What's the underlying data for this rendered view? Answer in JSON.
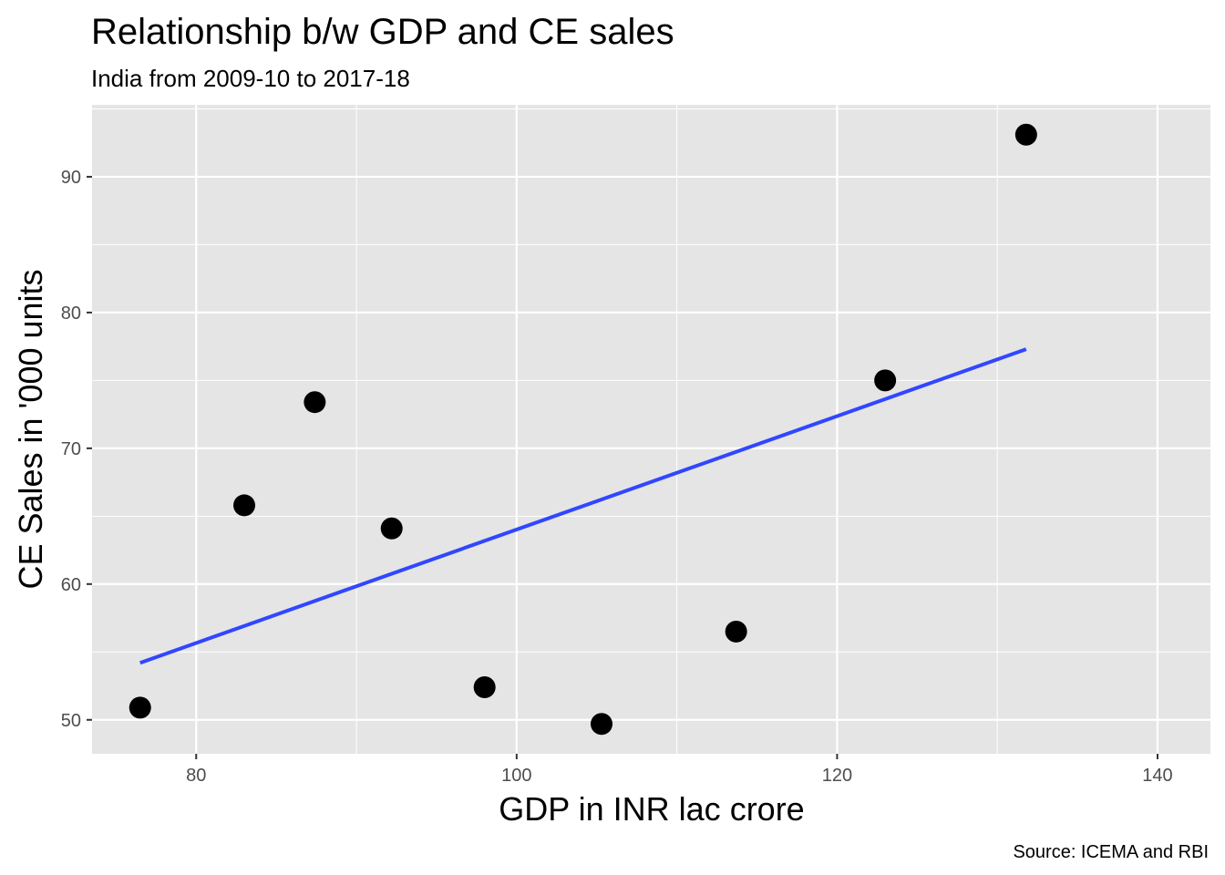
{
  "chart_data": {
    "type": "scatter",
    "title": "Relationship b/w GDP and CE sales",
    "subtitle": "India from 2009-10 to 2017-18",
    "xlabel": "GDP in INR lac crore",
    "ylabel": "CE Sales in '000 units",
    "caption": "Source: ICEMA and RBI",
    "xlim": [
      73.5,
      143.3
    ],
    "ylim": [
      47.5,
      95.3
    ],
    "x_ticks": [
      80,
      100,
      120,
      140
    ],
    "y_ticks": [
      50,
      60,
      70,
      80,
      90
    ],
    "x_tick_labels": [
      "80",
      "100",
      "120",
      "140"
    ],
    "y_tick_labels": [
      "50",
      "60",
      "70",
      "80",
      "90"
    ],
    "grid": true,
    "points": [
      {
        "x": 76.5,
        "y": 50.9
      },
      {
        "x": 83.0,
        "y": 65.8
      },
      {
        "x": 87.4,
        "y": 73.4
      },
      {
        "x": 92.2,
        "y": 64.1
      },
      {
        "x": 98.0,
        "y": 52.4
      },
      {
        "x": 105.3,
        "y": 49.7
      },
      {
        "x": 113.7,
        "y": 56.5
      },
      {
        "x": 123.0,
        "y": 75.0
      },
      {
        "x": 131.8,
        "y": 93.1
      }
    ],
    "trend_line": {
      "x": [
        76.5,
        131.8
      ],
      "y": [
        54.2,
        77.3
      ]
    },
    "colors": {
      "panel": "#e5e5e5",
      "grid": "#ffffff",
      "points": "#000000",
      "trend": "#3047ff"
    }
  }
}
